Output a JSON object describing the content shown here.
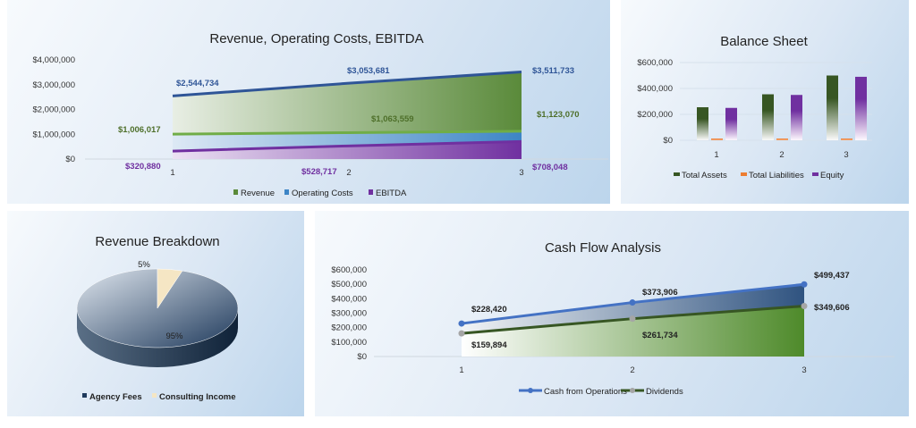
{
  "chart_data": [
    {
      "id": "rev",
      "type": "area",
      "title": "Revenue, Operating Costs, EBITDA",
      "categories": [
        "1",
        "2",
        "3"
      ],
      "yticks": [
        "$0",
        "$1,000,000",
        "$2,000,000",
        "$3,000,000",
        "$4,000,000"
      ],
      "ylim": [
        0,
        4000000
      ],
      "series": [
        {
          "name": "Revenue",
          "values": [
            2544734,
            3053681,
            3511733
          ],
          "labels": [
            "$2,544,734",
            "$3,053,681",
            "$3,511,733"
          ],
          "color": "#5a8a3a",
          "line": "#2f5597",
          "label_color": "#2f5597"
        },
        {
          "name": "Operating Costs",
          "values": [
            1006017,
            1063559,
            1123070
          ],
          "labels": [
            "$1,006,017",
            "$1,063,559",
            "$1,123,070"
          ],
          "color": "#3d85c6",
          "line": "#70ad47",
          "label_color": "#4e6f2a"
        },
        {
          "name": "EBITDA",
          "values": [
            320880,
            528717,
            708048
          ],
          "labels": [
            "$320,880",
            "$528,717",
            "$708,048"
          ],
          "color": "#7030a0",
          "line": "#7030a0",
          "label_color": "#7030a0"
        }
      ],
      "legend": "bottom"
    },
    {
      "id": "bs",
      "type": "bar",
      "title": "Balance Sheet",
      "categories": [
        "1",
        "2",
        "3"
      ],
      "yticks": [
        "$0",
        "$200,000",
        "$400,000",
        "$600,000"
      ],
      "ylim": [
        0,
        600000
      ],
      "series": [
        {
          "name": "Total Assets",
          "values": [
            255000,
            355000,
            500000
          ],
          "color": "#375623"
        },
        {
          "name": "Total Liabilities",
          "values": [
            5000,
            5000,
            5000
          ],
          "color": "#ed7d31"
        },
        {
          "name": "Equity",
          "values": [
            250000,
            350000,
            490000
          ],
          "color": "#7030a0"
        }
      ],
      "legend": "bottom"
    },
    {
      "id": "pie",
      "type": "pie",
      "title": "Revenue Breakdown",
      "slices": [
        {
          "name": "Agency Fees",
          "value": 95,
          "label": "95%",
          "color": "#1f3a5c"
        },
        {
          "name": "Consulting Income",
          "value": 5,
          "label": "5%",
          "color": "#f5e6c4"
        }
      ],
      "legend": "bottom"
    },
    {
      "id": "cf",
      "type": "line",
      "title": "Cash Flow Analysis",
      "categories": [
        "1",
        "2",
        "3"
      ],
      "yticks": [
        "$0",
        "$100,000",
        "$200,000",
        "$300,000",
        "$400,000",
        "$500,000",
        "$600,000"
      ],
      "ylim": [
        0,
        600000
      ],
      "series": [
        {
          "name": "Cash from Operations",
          "values": [
            228420,
            373906,
            499437
          ],
          "labels": [
            "$228,420",
            "$373,906",
            "$499,437"
          ],
          "color": "#4472c4"
        },
        {
          "name": "Dividends",
          "values": [
            159894,
            261734,
            349606
          ],
          "labels": [
            "$159,894",
            "$261,734",
            "$349,606"
          ],
          "color": "#375623"
        }
      ],
      "legend": "bottom"
    }
  ]
}
